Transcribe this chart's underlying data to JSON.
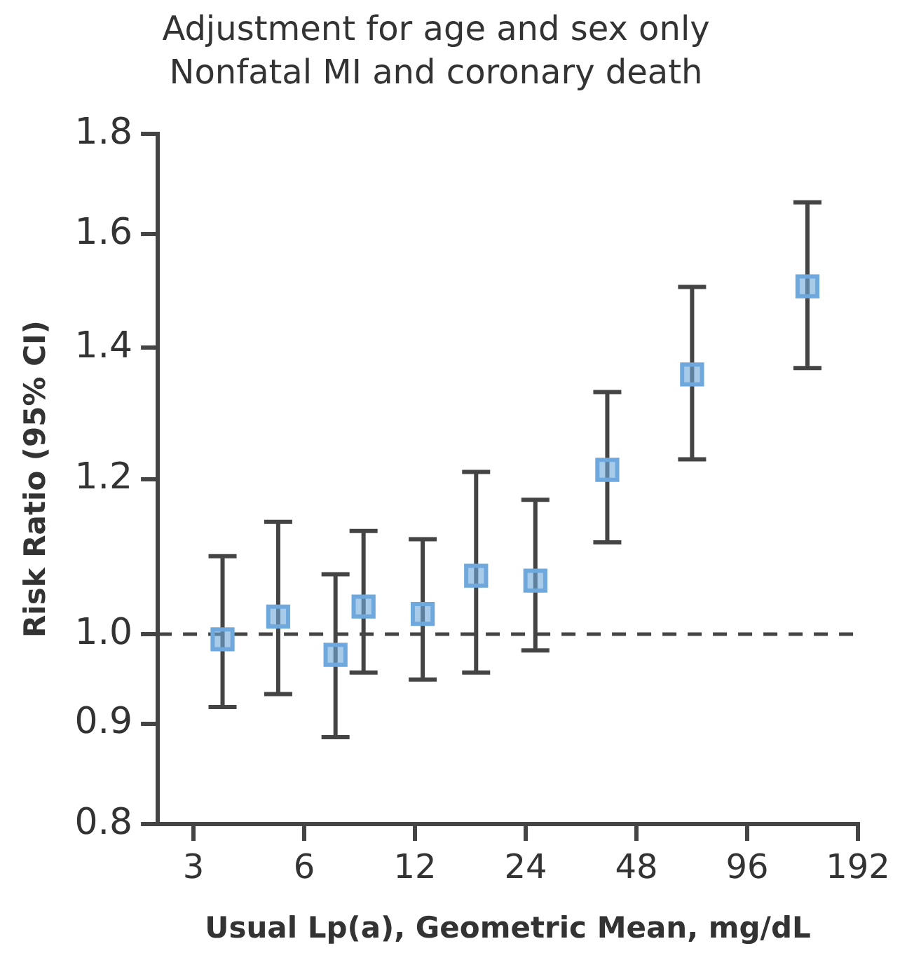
{
  "chart_data": {
    "type": "scatter",
    "title": "Adjustment for age and sex only",
    "subtitle": "Nonfatal MI and coronary death",
    "xlabel": "Usual Lp(a), Geometric Mean, mg/dL",
    "ylabel": "Risk Ratio (95% CI)",
    "x": [
      3.6,
      5.1,
      7.3,
      8.7,
      12.6,
      17.6,
      25.5,
      40,
      68,
      140
    ],
    "series": [
      {
        "color": "#6fa8dc",
        "values": [
          0.994,
          1.021,
          0.976,
          1.033,
          1.024,
          1.071,
          1.065,
          1.213,
          1.357,
          1.505
        ],
        "errors": [
          [
            0.918,
            1.096
          ],
          [
            0.932,
            1.141
          ],
          [
            0.886,
            1.073
          ],
          [
            0.956,
            1.129
          ],
          [
            0.948,
            1.118
          ],
          [
            0.956,
            1.21
          ],
          [
            0.981,
            1.171
          ],
          [
            1.114,
            1.329
          ],
          [
            1.228,
            1.504
          ],
          [
            1.367,
            1.661
          ]
        ]
      }
    ],
    "log": "xy",
    "xlim": [
      2.4,
      192
    ],
    "xticks": [
      3,
      6,
      12,
      24,
      48,
      96,
      192
    ],
    "ylim": [
      0.8,
      1.8
    ],
    "yticks": [
      0.8,
      0.9,
      {
        "value": 1,
        "label": "1.0"
      },
      1.2,
      1.4,
      1.6,
      1.8
    ],
    "ref_lines": [
      {
        "axis": "y",
        "value": 1.0,
        "line_style": "dashed",
        "color": "#444444"
      }
    ],
    "marker": "square",
    "grid": false,
    "legend": false
  }
}
